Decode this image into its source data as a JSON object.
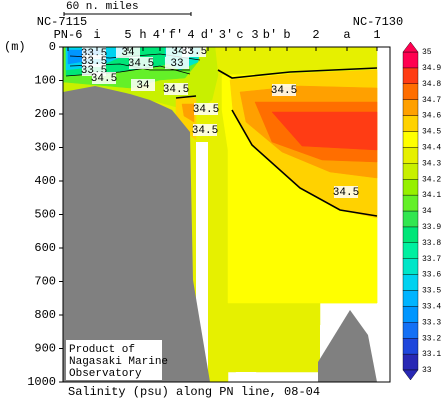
{
  "chart_data": {
    "type": "contour",
    "title": "Salinity (psu) along PN line, 08-04",
    "y_label": "(m)",
    "ylim": [
      0,
      1000
    ],
    "yticks": [
      0,
      100,
      200,
      300,
      400,
      500,
      600,
      700,
      800,
      900,
      1000
    ],
    "stations": [
      "PN-6",
      "i",
      "5",
      "h",
      "4'",
      "f'",
      "4",
      "d'",
      "3'",
      "c",
      "3",
      "b'",
      "b",
      "2",
      "a",
      "1"
    ],
    "section_start": "NC-7115",
    "section_end": "NC-7130",
    "scale_label": "60 n. miles",
    "note": [
      "Product of",
      "Nagasaki Marine",
      "Observatory"
    ],
    "colorbar": {
      "ticks": [
        33,
        33.1,
        33.2,
        33.3,
        33.4,
        33.5,
        33.6,
        33.7,
        33.8,
        33.9,
        34,
        34.1,
        34.2,
        34.3,
        34.4,
        34.5,
        34.6,
        34.7,
        34.8,
        34.9,
        35
      ],
      "colors": [
        "#2828b4",
        "#1e46dc",
        "#1470f5",
        "#0096ff",
        "#00b4ff",
        "#00d2f0",
        "#00e6c8",
        "#00f0a0",
        "#00e678",
        "#32e650",
        "#64f028",
        "#96f000",
        "#c8f000",
        "#e6f000",
        "#ffff00",
        "#ffd200",
        "#ffa000",
        "#ff6e00",
        "#ff3c14",
        "#ff0050"
      ]
    },
    "contour_labels": [
      33.5,
      33.5,
      33.5,
      34,
      34.5,
      34.5,
      34,
      34,
      33.5,
      33,
      34.5,
      34.5,
      34.5,
      34.5,
      34.5
    ]
  }
}
